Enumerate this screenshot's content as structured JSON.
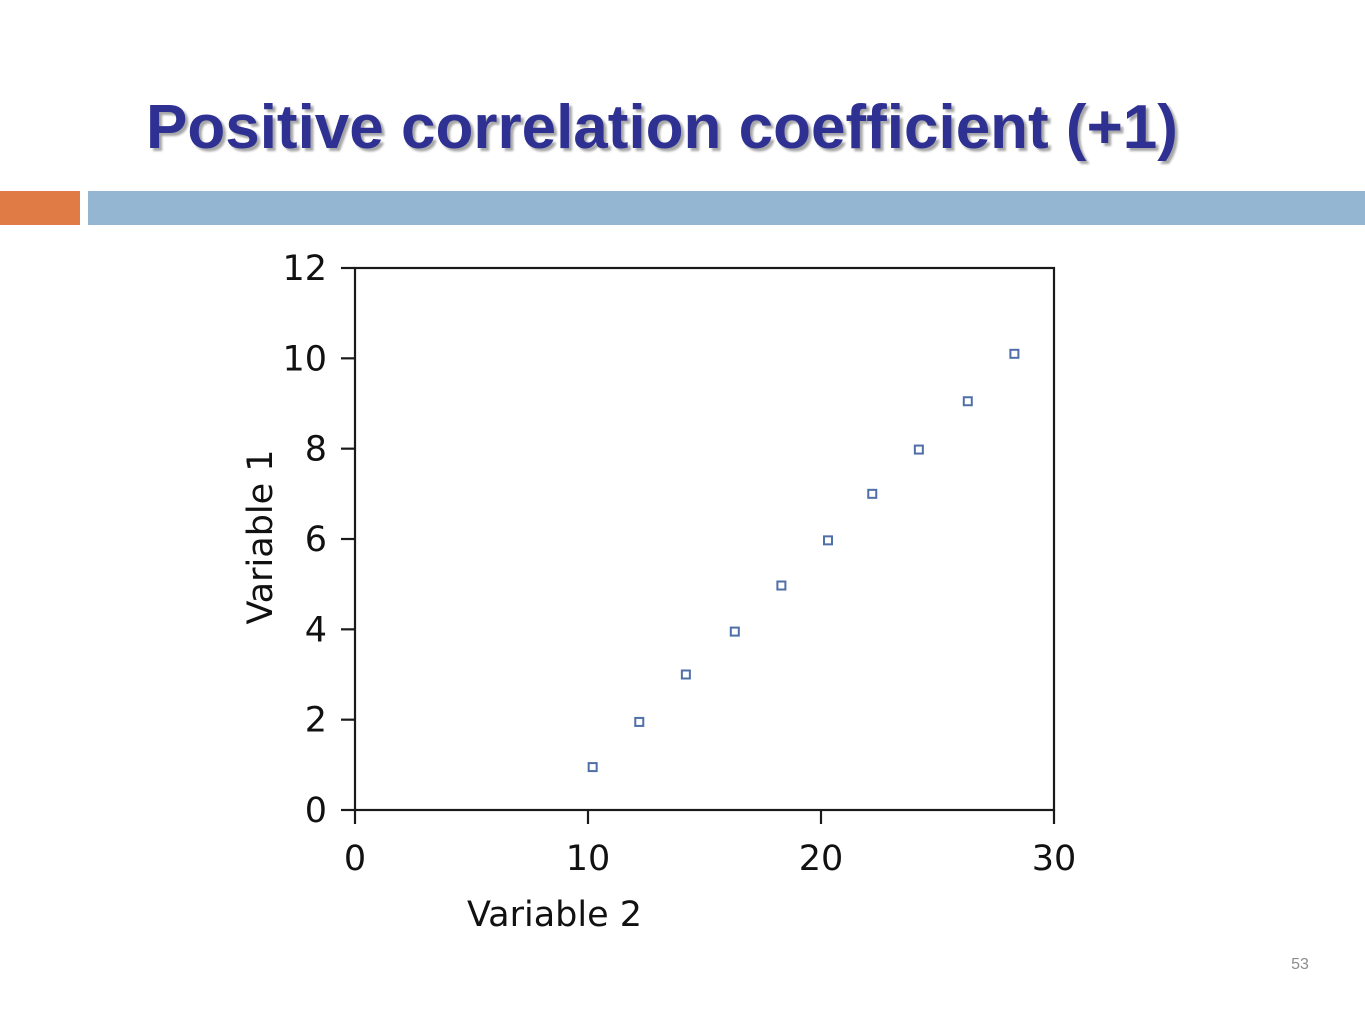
{
  "slide": {
    "title": "Positive correlation coefficient (+1)",
    "page_number": "53",
    "colors": {
      "title": "#2E3192",
      "accent_orange": "#E07B45",
      "accent_blue": "#94B6D2",
      "marker": "#4F6FA8"
    }
  },
  "chart_data": {
    "type": "scatter",
    "title": "",
    "xlabel": "Variable 2",
    "ylabel": "Variable 1",
    "xlim": [
      0,
      30
    ],
    "ylim": [
      0,
      12
    ],
    "xticks": [
      0,
      10,
      20,
      30
    ],
    "yticks": [
      0,
      2,
      4,
      6,
      8,
      10,
      12
    ],
    "grid": false,
    "marker": "hollow-square",
    "points": [
      {
        "x": 10.2,
        "y": 0.95
      },
      {
        "x": 12.2,
        "y": 1.95
      },
      {
        "x": 14.2,
        "y": 3.0
      },
      {
        "x": 16.3,
        "y": 3.95
      },
      {
        "x": 18.3,
        "y": 4.97
      },
      {
        "x": 20.3,
        "y": 5.97
      },
      {
        "x": 22.2,
        "y": 7.0
      },
      {
        "x": 24.2,
        "y": 7.98
      },
      {
        "x": 26.3,
        "y": 9.05
      },
      {
        "x": 28.3,
        "y": 10.1
      }
    ]
  }
}
